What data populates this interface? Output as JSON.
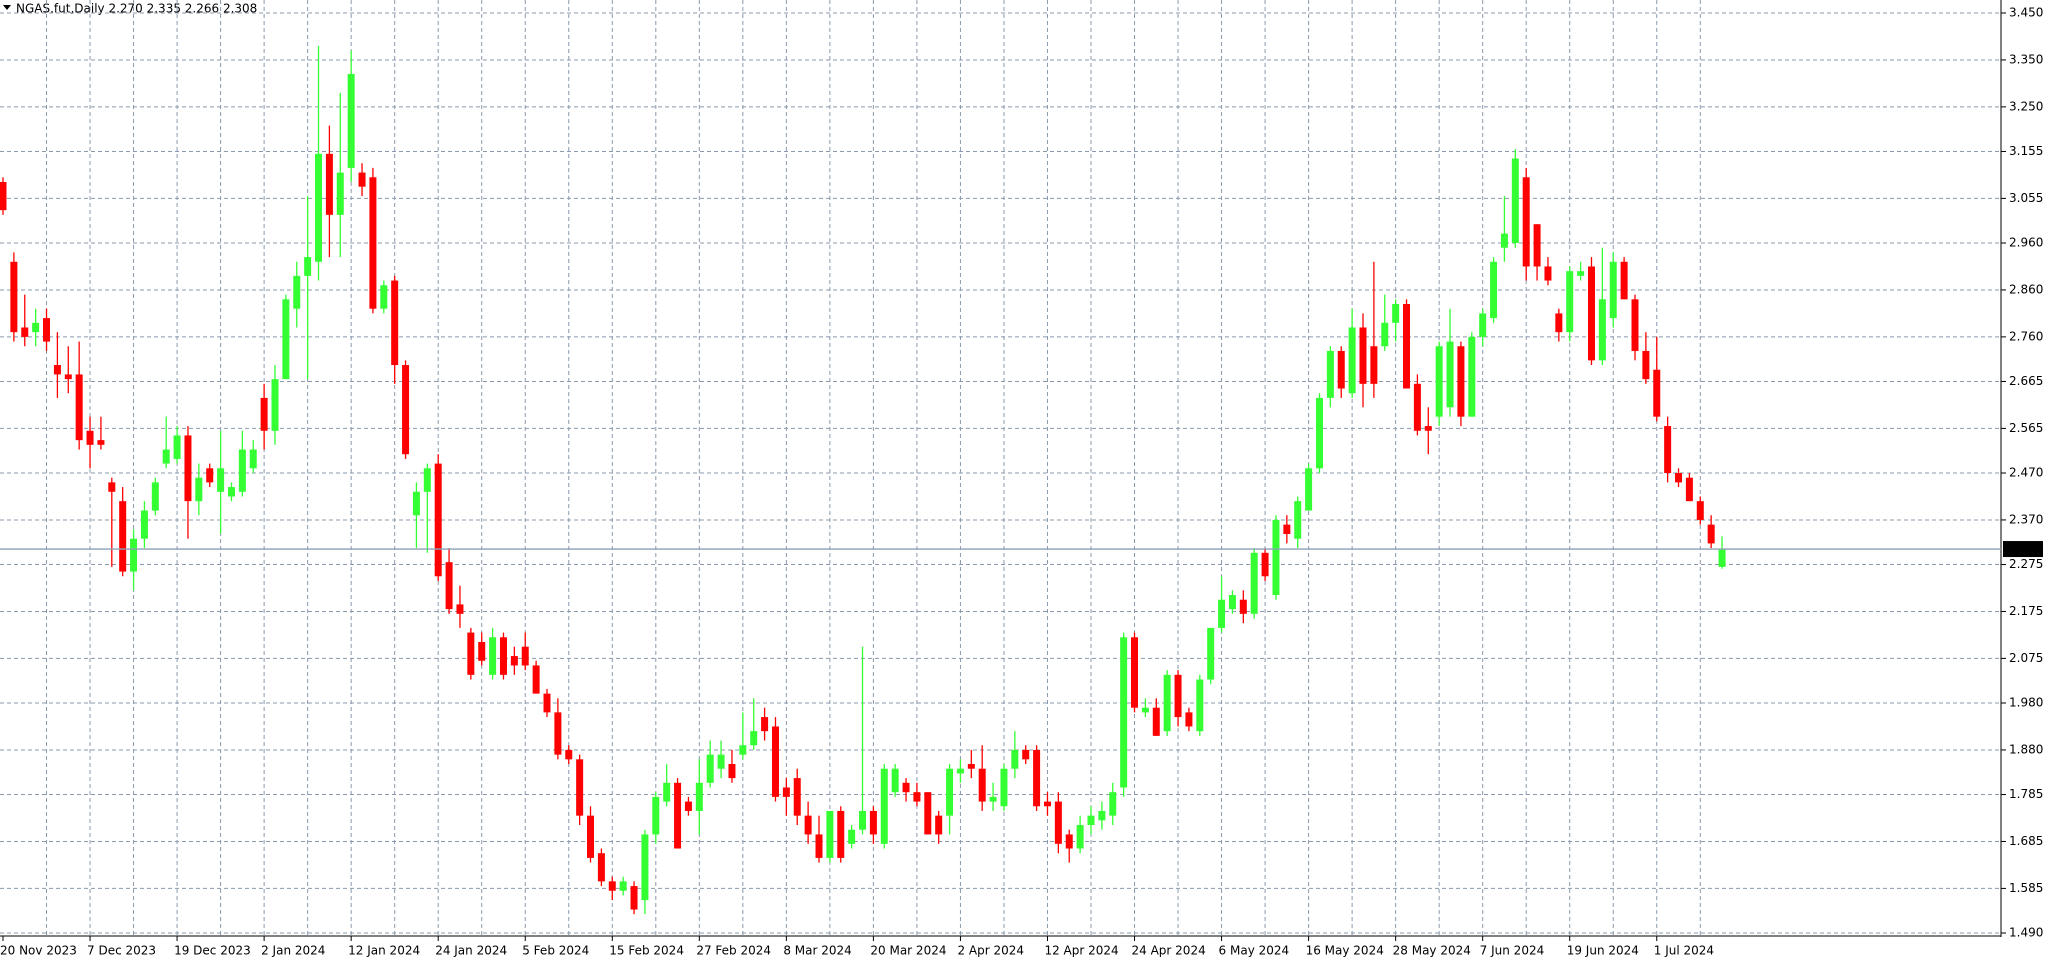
{
  "chart_data": {
    "type": "candlestick",
    "title": "NGAS.fut,Daily  2.270 2.335 2.266 2.308",
    "categories": [
      "20 Nov 2023",
      null,
      null,
      null,
      null,
      null,
      null,
      null,
      "7 Dec 2023",
      null,
      null,
      null,
      null,
      null,
      null,
      null,
      "19 Dec 2023",
      null,
      null,
      null,
      null,
      null,
      null,
      null,
      "2 Jan 2024",
      null,
      null,
      null,
      null,
      null,
      null,
      null,
      "12 Jan 2024",
      null,
      null,
      null,
      null,
      null,
      null,
      null,
      "24 Jan 2024",
      null,
      null,
      null,
      null,
      null,
      null,
      null,
      "5 Feb 2024",
      null,
      null,
      null,
      null,
      null,
      null,
      null,
      "15 Feb 2024",
      null,
      null,
      null,
      null,
      null,
      null,
      null,
      "27 Feb 2024",
      null,
      null,
      null,
      null,
      null,
      null,
      null,
      "8 Mar 2024",
      null,
      null,
      null,
      null,
      null,
      null,
      null,
      "20 Mar 2024",
      null,
      null,
      null,
      null,
      null,
      null,
      null,
      "2 Apr 2024",
      null,
      null,
      null,
      null,
      null,
      null,
      null,
      "12 Apr 2024",
      null,
      null,
      null,
      null,
      null,
      null,
      null,
      "24 Apr 2024",
      null,
      null,
      null,
      null,
      null,
      null,
      null,
      "6 May 2024",
      null,
      null,
      null,
      null,
      null,
      null,
      null,
      "16 May 2024",
      null,
      null,
      null,
      null,
      null,
      null,
      null,
      "28 May 2024",
      null,
      null,
      null,
      null,
      null,
      null,
      null,
      "7 Jun 2024",
      null,
      null,
      null,
      null,
      null,
      null,
      null,
      "19 Jun 2024",
      null,
      null,
      null,
      null,
      null,
      null,
      null,
      "1 Jul 2024",
      null,
      null,
      null,
      null,
      null,
      null
    ],
    "open": [
      3.09,
      2.92,
      2.78,
      2.77,
      2.8,
      2.7,
      2.68,
      2.68,
      2.56,
      2.54,
      2.45,
      2.41,
      2.26,
      2.33,
      2.39,
      2.49,
      2.5,
      2.55,
      2.41,
      2.48,
      2.43,
      2.42,
      2.43,
      2.48,
      2.63,
      2.56,
      2.67,
      2.82,
      2.89,
      2.92,
      3.15,
      3.02,
      3.12,
      3.11,
      3.1,
      2.82,
      2.88,
      2.7,
      2.38,
      2.43,
      2.49,
      2.28,
      2.19,
      2.13,
      2.11,
      2.04,
      2.12,
      2.08,
      2.1,
      2.06,
      2.0,
      1.96,
      1.88,
      1.86,
      1.74,
      1.66,
      1.6,
      1.58,
      1.59,
      1.56,
      1.7,
      1.77,
      1.81,
      1.77,
      1.75,
      1.81,
      1.84,
      1.85,
      1.87,
      1.89,
      1.95,
      1.93,
      1.8,
      1.82,
      1.74,
      1.7,
      1.65,
      1.75,
      1.68,
      1.71,
      1.75,
      1.68,
      1.79,
      1.81,
      1.79,
      1.79,
      1.74,
      1.74,
      1.83,
      1.85,
      1.84,
      1.77,
      1.76,
      1.84,
      1.88,
      1.88,
      1.77,
      1.77,
      1.7,
      1.67,
      1.72,
      1.73,
      1.74,
      1.8,
      2.12,
      1.96,
      1.97,
      1.92,
      2.04,
      1.96,
      1.92,
      2.03,
      2.14,
      2.18,
      2.2,
      2.17,
      2.3,
      2.21,
      2.36,
      2.33,
      2.39,
      2.48,
      2.63,
      2.73,
      2.64,
      2.78,
      2.74,
      2.74,
      2.79,
      2.83,
      2.66,
      2.57,
      2.59,
      2.61,
      2.74,
      2.59,
      2.76,
      2.8,
      2.95,
      2.96,
      3.1,
      3.0,
      2.91,
      2.81,
      2.77,
      2.89,
      2.91,
      2.71,
      2.8,
      2.92,
      2.84,
      2.73,
      2.69,
      2.57,
      2.47,
      2.46,
      2.41,
      2.36,
      2.27
    ],
    "high": [
      3.1,
      2.94,
      2.85,
      2.82,
      2.82,
      2.77,
      2.74,
      2.75,
      2.59,
      2.59,
      2.46,
      2.44,
      2.35,
      2.41,
      2.46,
      2.59,
      2.57,
      2.57,
      2.49,
      2.49,
      2.56,
      2.45,
      2.56,
      2.54,
      2.66,
      2.7,
      2.85,
      2.92,
      3.06,
      3.38,
      3.21,
      3.28,
      3.37,
      3.13,
      3.12,
      2.88,
      2.89,
      2.71,
      2.45,
      2.49,
      2.51,
      2.31,
      2.23,
      2.14,
      2.13,
      2.14,
      2.13,
      2.1,
      2.13,
      2.07,
      2.01,
      1.99,
      1.89,
      1.87,
      1.76,
      1.67,
      1.61,
      1.61,
      1.6,
      1.71,
      1.79,
      1.85,
      1.82,
      1.78,
      1.86,
      1.9,
      1.9,
      1.88,
      1.96,
      1.99,
      1.97,
      1.95,
      1.82,
      1.84,
      1.77,
      1.74,
      1.75,
      1.76,
      1.72,
      2.1,
      1.76,
      1.85,
      1.85,
      1.82,
      1.81,
      1.79,
      1.75,
      1.85,
      1.86,
      1.88,
      1.89,
      1.81,
      1.85,
      1.92,
      1.89,
      1.89,
      1.79,
      1.79,
      1.71,
      1.74,
      1.76,
      1.77,
      1.81,
      2.13,
      2.13,
      1.99,
      1.99,
      2.05,
      2.05,
      1.97,
      2.04,
      2.14,
      2.25,
      2.22,
      2.22,
      2.31,
      2.31,
      2.38,
      2.38,
      2.42,
      2.49,
      2.64,
      2.74,
      2.74,
      2.82,
      2.81,
      2.92,
      2.85,
      2.84,
      2.84,
      2.68,
      2.61,
      2.75,
      2.82,
      2.75,
      2.77,
      2.82,
      2.93,
      3.06,
      3.16,
      3.12,
      3.0,
      2.93,
      2.82,
      2.91,
      2.92,
      2.93,
      2.95,
      2.94,
      2.93,
      2.85,
      2.77,
      2.76,
      2.59,
      2.48,
      2.47,
      2.42,
      2.38,
      2.335
    ],
    "low": [
      3.02,
      2.75,
      2.74,
      2.74,
      2.73,
      2.63,
      2.64,
      2.52,
      2.48,
      2.52,
      2.27,
      2.25,
      2.22,
      2.31,
      2.38,
      2.48,
      2.49,
      2.33,
      2.38,
      2.44,
      2.34,
      2.41,
      2.42,
      2.47,
      2.52,
      2.53,
      2.67,
      2.78,
      2.67,
      2.88,
      2.93,
      2.93,
      3.09,
      3.06,
      2.81,
      2.81,
      2.66,
      2.5,
      2.31,
      2.3,
      2.24,
      2.17,
      2.14,
      2.03,
      2.06,
      2.03,
      2.03,
      2.04,
      2.05,
      2.0,
      1.95,
      1.86,
      1.85,
      1.72,
      1.64,
      1.59,
      1.56,
      1.57,
      1.53,
      1.53,
      1.68,
      1.76,
      1.67,
      1.74,
      1.7,
      1.8,
      1.82,
      1.81,
      1.86,
      1.88,
      1.9,
      1.77,
      1.74,
      1.72,
      1.68,
      1.64,
      1.64,
      1.64,
      1.67,
      1.7,
      1.68,
      1.67,
      1.78,
      1.77,
      1.76,
      1.7,
      1.68,
      1.7,
      1.81,
      1.82,
      1.75,
      1.75,
      1.75,
      1.82,
      1.85,
      1.75,
      1.74,
      1.66,
      1.64,
      1.66,
      1.7,
      1.71,
      1.72,
      1.78,
      1.96,
      1.95,
      1.91,
      1.91,
      1.93,
      1.92,
      1.91,
      2.02,
      2.13,
      2.17,
      2.15,
      2.16,
      2.24,
      2.2,
      2.32,
      2.31,
      2.39,
      2.47,
      2.61,
      2.63,
      2.63,
      2.61,
      2.63,
      2.73,
      2.75,
      2.65,
      2.55,
      2.51,
      2.57,
      2.59,
      2.57,
      2.59,
      2.74,
      2.79,
      2.92,
      2.95,
      2.88,
      2.88,
      2.87,
      2.75,
      2.75,
      2.88,
      2.7,
      2.7,
      2.78,
      2.84,
      2.71,
      2.66,
      2.58,
      2.45,
      2.44,
      2.41,
      2.36,
      2.31,
      2.266
    ],
    "close": [
      3.03,
      2.77,
      2.76,
      2.79,
      2.75,
      2.68,
      2.67,
      2.54,
      2.53,
      2.53,
      2.43,
      2.26,
      2.33,
      2.39,
      2.45,
      2.52,
      2.55,
      2.41,
      2.46,
      2.45,
      2.48,
      2.44,
      2.52,
      2.52,
      2.56,
      2.67,
      2.84,
      2.89,
      2.93,
      3.15,
      3.02,
      3.11,
      3.32,
      3.08,
      2.82,
      2.87,
      2.7,
      2.51,
      2.43,
      2.48,
      2.25,
      2.18,
      2.17,
      2.04,
      2.07,
      2.12,
      2.04,
      2.06,
      2.06,
      2.0,
      1.96,
      1.87,
      1.86,
      1.74,
      1.65,
      1.6,
      1.58,
      1.6,
      1.54,
      1.7,
      1.78,
      1.81,
      1.67,
      1.75,
      1.81,
      1.87,
      1.87,
      1.82,
      1.89,
      1.92,
      1.92,
      1.78,
      1.78,
      1.74,
      1.7,
      1.65,
      1.75,
      1.65,
      1.71,
      1.75,
      1.7,
      1.84,
      1.84,
      1.79,
      1.77,
      1.7,
      1.7,
      1.84,
      1.84,
      1.84,
      1.77,
      1.78,
      1.84,
      1.88,
      1.86,
      1.76,
      1.76,
      1.68,
      1.67,
      1.72,
      1.74,
      1.75,
      1.79,
      2.12,
      1.97,
      1.97,
      1.91,
      2.04,
      1.95,
      1.93,
      2.03,
      2.14,
      2.2,
      2.21,
      2.17,
      2.3,
      2.25,
      2.37,
      2.34,
      2.41,
      2.48,
      2.63,
      2.73,
      2.65,
      2.78,
      2.66,
      2.66,
      2.79,
      2.83,
      2.65,
      2.56,
      2.56,
      2.74,
      2.75,
      2.59,
      2.76,
      2.81,
      2.92,
      2.98,
      3.14,
      2.91,
      2.91,
      2.88,
      2.77,
      2.9,
      2.9,
      2.71,
      2.84,
      2.92,
      2.84,
      2.73,
      2.67,
      2.59,
      2.47,
      2.45,
      2.41,
      2.37,
      2.32,
      2.308
    ],
    "up_color": "#33ff33",
    "down_color": "#ff0000",
    "last_price": {
      "value": 2.308,
      "label": "2.308"
    },
    "ylim": [
      1.49,
      3.45
    ],
    "yticks": [
      {
        "value": 3.45,
        "label": "3.450"
      },
      {
        "value": 3.35,
        "label": "3.350"
      },
      {
        "value": 3.25,
        "label": "3.250"
      },
      3.155,
      3.055,
      {
        "value": 2.96,
        "label": "2.960"
      },
      {
        "value": 2.86,
        "label": "2.860"
      },
      {
        "value": 2.76,
        "label": "2.760"
      },
      2.665,
      2.565,
      {
        "value": 2.47,
        "label": "2.470"
      },
      {
        "value": 2.37,
        "label": "2.370"
      },
      2.275,
      2.175,
      2.075,
      {
        "value": 1.98,
        "label": "1.980"
      },
      {
        "value": 1.88,
        "label": "1.880"
      },
      1.785,
      1.685,
      1.585,
      {
        "value": 1.49,
        "label": "1.490"
      }
    ],
    "grid": true
  }
}
